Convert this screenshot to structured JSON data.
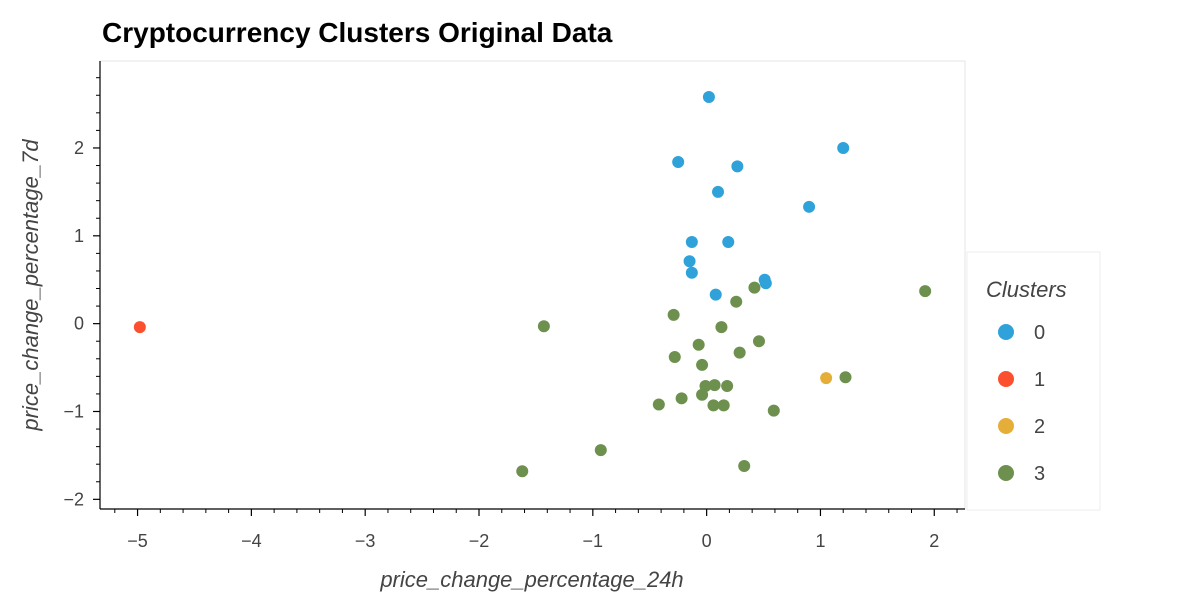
{
  "chart_data": {
    "type": "scatter",
    "title": "Cryptocurrency Clusters Original Data",
    "xlabel": "price_change_percentage_24h",
    "ylabel": "price_change_percentage_7d",
    "xlim": [
      -5.33,
      2.27
    ],
    "ylim": [
      -2.11,
      2.99
    ],
    "x_ticks": [
      -5,
      -4,
      -3,
      -2,
      -1,
      0,
      1,
      2
    ],
    "x_tick_labels": [
      "−5",
      "−4",
      "−3",
      "−2",
      "−1",
      "0",
      "1",
      "2"
    ],
    "y_ticks": [
      -2,
      -1,
      0,
      1,
      2
    ],
    "y_tick_labels": [
      "−2",
      "−1",
      "0",
      "1",
      "2"
    ],
    "grid": false,
    "legend": {
      "title": "Clusters",
      "placement": "right",
      "entries": [
        "0",
        "1",
        "2",
        "3"
      ]
    },
    "series": [
      {
        "name": "0",
        "color": "#30a2da",
        "points": [
          [
            0.02,
            2.58
          ],
          [
            1.2,
            2.0
          ],
          [
            -0.25,
            1.84
          ],
          [
            0.27,
            1.79
          ],
          [
            0.1,
            1.5
          ],
          [
            0.9,
            1.33
          ],
          [
            -0.13,
            0.93
          ],
          [
            0.19,
            0.93
          ],
          [
            -0.15,
            0.71
          ],
          [
            -0.13,
            0.58
          ],
          [
            0.51,
            0.5
          ],
          [
            0.52,
            0.46
          ],
          [
            0.08,
            0.33
          ]
        ]
      },
      {
        "name": "1",
        "color": "#fc4f30",
        "points": [
          [
            -4.98,
            -0.04
          ]
        ]
      },
      {
        "name": "2",
        "color": "#e5ae38",
        "points": [
          [
            1.05,
            -0.62
          ]
        ]
      },
      {
        "name": "3",
        "color": "#6d904f",
        "points": [
          [
            1.92,
            0.37
          ],
          [
            0.42,
            0.41
          ],
          [
            0.26,
            0.25
          ],
          [
            -0.29,
            0.1
          ],
          [
            0.13,
            -0.04
          ],
          [
            -1.43,
            -0.03
          ],
          [
            0.46,
            -0.2
          ],
          [
            -0.07,
            -0.24
          ],
          [
            0.29,
            -0.33
          ],
          [
            -0.28,
            -0.38
          ],
          [
            -0.04,
            -0.47
          ],
          [
            1.22,
            -0.61
          ],
          [
            -0.01,
            -0.71
          ],
          [
            0.07,
            -0.7
          ],
          [
            0.18,
            -0.71
          ],
          [
            -0.04,
            -0.81
          ],
          [
            -0.22,
            -0.85
          ],
          [
            -0.42,
            -0.92
          ],
          [
            0.06,
            -0.93
          ],
          [
            0.15,
            -0.93
          ],
          [
            0.59,
            -0.99
          ],
          [
            -0.93,
            -1.44
          ],
          [
            0.33,
            -1.62
          ],
          [
            -1.62,
            -1.68
          ]
        ]
      }
    ]
  }
}
